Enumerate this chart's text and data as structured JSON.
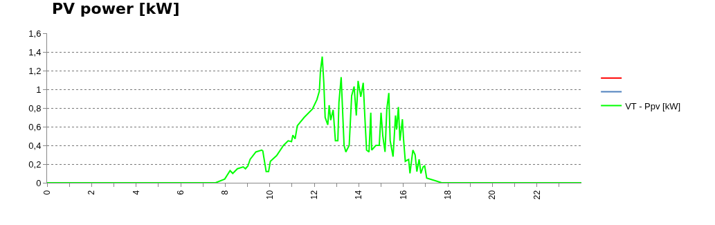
{
  "chart_data": {
    "type": "line",
    "title": "PV power [kW]",
    "xlim": [
      0,
      24
    ],
    "xticks": [
      0,
      {
        "value": 1,
        "label": null
      },
      2,
      {
        "value": 3,
        "label": null
      },
      4,
      {
        "value": 5,
        "label": null
      },
      6,
      {
        "value": 7,
        "label": null
      },
      8,
      {
        "value": 9,
        "label": null
      },
      10,
      {
        "value": 11,
        "label": null
      },
      12,
      {
        "value": 13,
        "label": null
      },
      14,
      {
        "value": 15,
        "label": null
      },
      16,
      {
        "value": 17,
        "label": null
      },
      18,
      {
        "value": 19,
        "label": null
      },
      20,
      {
        "value": 21,
        "label": null
      },
      22,
      {
        "value": 23,
        "label": null
      }
    ],
    "ylim": [
      0,
      1.6
    ],
    "yticks": [
      0,
      {
        "value": 0.2,
        "label": "0,2"
      },
      {
        "value": 0.4,
        "label": "0,4"
      },
      {
        "value": 0.6,
        "label": "0,6"
      },
      {
        "value": 0.8,
        "label": "0,8"
      },
      1,
      {
        "value": 1.2,
        "label": "1,2"
      },
      {
        "value": 1.4,
        "label": "1,4"
      },
      {
        "value": 1.6,
        "label": "1,6"
      }
    ],
    "grid": "y",
    "legend": "right",
    "marker": "none",
    "line_style": "solid",
    "series": [
      {
        "color": "#ff0000"
      },
      {
        "color": "#4f81bd"
      },
      {
        "name": "VT - Ppv [kW]",
        "color": "#00ff00",
        "x": [
          0,
          7.57,
          7.98,
          8.22,
          8.34,
          8.55,
          8.81,
          8.91,
          9.02,
          9.12,
          9.38,
          9.64,
          9.69,
          9.84,
          9.95,
          10.03,
          10.31,
          10.62,
          10.83,
          10.98,
          11.04,
          11.14,
          11.24,
          11.55,
          11.92,
          12.12,
          12.23,
          12.28,
          12.36,
          12.43,
          12.49,
          12.61,
          12.67,
          12.74,
          12.85,
          12.95,
          13.06,
          13.11,
          13.21,
          13.34,
          13.42,
          13.57,
          13.68,
          13.79,
          13.89,
          13.97,
          14.09,
          14.2,
          14.27,
          14.35,
          14.46,
          14.54,
          14.58,
          14.77,
          14.92,
          15.0,
          15.08,
          15.18,
          15.26,
          15.35,
          15.41,
          15.54,
          15.65,
          15.7,
          15.78,
          15.85,
          15.96,
          16.01,
          16.09,
          16.16,
          16.24,
          16.3,
          16.43,
          16.53,
          16.61,
          16.71,
          16.79,
          16.89,
          16.96,
          17.05,
          17.46,
          17.72,
          24
        ],
        "values": [
          0,
          0,
          0.04,
          0.13,
          0.1,
          0.15,
          0.17,
          0.15,
          0.18,
          0.25,
          0.33,
          0.35,
          0.34,
          0.12,
          0.12,
          0.23,
          0.29,
          0.4,
          0.45,
          0.44,
          0.51,
          0.47,
          0.61,
          0.7,
          0.79,
          0.89,
          0.98,
          1.2,
          1.35,
          1.07,
          0.7,
          0.62,
          0.83,
          0.67,
          0.78,
          0.45,
          0.45,
          0.86,
          1.13,
          0.4,
          0.33,
          0.4,
          0.93,
          1.03,
          0.72,
          1.09,
          0.92,
          1.07,
          0.72,
          0.35,
          0.33,
          0.75,
          0.35,
          0.4,
          0.4,
          0.75,
          0.5,
          0.33,
          0.79,
          0.96,
          0.45,
          0.28,
          0.72,
          0.57,
          0.81,
          0.45,
          0.68,
          0.47,
          0.23,
          0.24,
          0.25,
          0.1,
          0.35,
          0.3,
          0.12,
          0.25,
          0.1,
          0.17,
          0.18,
          0.05,
          0.02,
          0,
          0
        ]
      }
    ]
  }
}
